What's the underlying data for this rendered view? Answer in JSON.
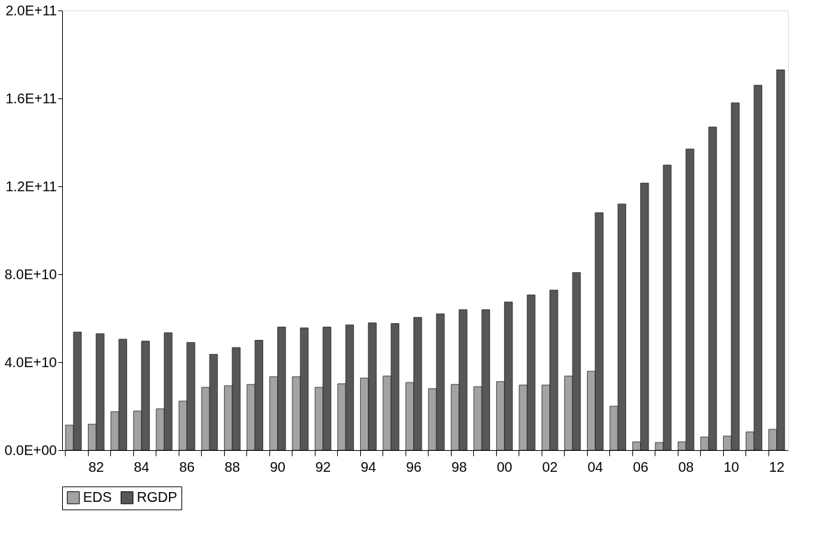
{
  "chart_data": {
    "type": "bar",
    "categories": [
      null,
      "82",
      null,
      "84",
      null,
      "86",
      null,
      "88",
      null,
      "90",
      null,
      "92",
      null,
      "94",
      null,
      "96",
      null,
      "98",
      null,
      "00",
      null,
      "02",
      null,
      "04",
      null,
      "06",
      null,
      "08",
      null,
      "10",
      null,
      "12"
    ],
    "series": [
      {
        "name": "EDS",
        "color": "#a3a3a3",
        "values": [
          11400000000.0,
          11800000000.0,
          17500000000.0,
          17800000000.0,
          18800000000.0,
          22300000000.0,
          28600000000.0,
          29300000000.0,
          29900000000.0,
          33400000000.0,
          33400000000.0,
          28600000000.0,
          30200000000.0,
          32800000000.0,
          33700000000.0,
          30800000000.0,
          28000000000.0,
          29900000000.0,
          28900000000.0,
          31200000000.0,
          29600000000.0,
          29600000000.0,
          33700000000.0,
          35900000000.0,
          20000000000.0,
          3800000000.0,
          3500000000.0,
          3800000000.0,
          6000000000.0,
          6400000000.0,
          8300000000.0,
          9500000000.0
        ]
      },
      {
        "name": "RGDP",
        "color": "#575757",
        "values": [
          53700000000.0,
          53000000000.0,
          50500000000.0,
          49600000000.0,
          53400000000.0,
          49000000000.0,
          43600000000.0,
          46700000000.0,
          50000000000.0,
          56000000000.0,
          55600000000.0,
          56000000000.0,
          57000000000.0,
          57900000000.0,
          57600000000.0,
          60400000000.0,
          62000000000.0,
          63900000000.0,
          63900000000.0,
          67400000000.0,
          70600000000.0,
          72800000000.0,
          80800000000.0,
          108000000000.0,
          112000000000.0,
          121500000000.0,
          129700000000.0,
          137000000000.0,
          147000000000.0,
          158000000000.0,
          166000000000.0,
          173000000000.0
        ]
      }
    ],
    "ylim": [
      0,
      200000000000.0
    ],
    "yticks": [
      {
        "value": 0,
        "label": "0.0E+00"
      },
      {
        "value": 40000000000.0,
        "label": "4.0E+10"
      },
      {
        "value": 80000000000.0,
        "label": "8.0E+10"
      },
      {
        "value": 120000000000.0,
        "label": "1.2E+11"
      },
      {
        "value": 160000000000.0,
        "label": "1.6E+11"
      },
      {
        "value": 200000000000.0,
        "label": "2.0E+11"
      }
    ],
    "grid": false,
    "legend": "bottom"
  }
}
